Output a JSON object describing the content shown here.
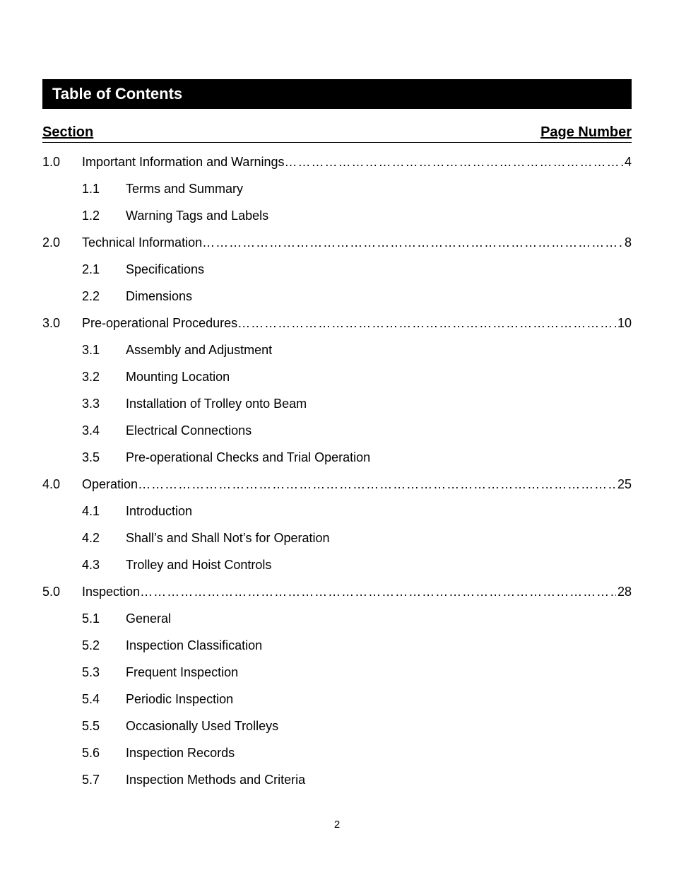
{
  "title": "Table of Contents",
  "header": {
    "left": "Section",
    "right": "Page Number"
  },
  "page_number_footer": "2",
  "colors": {
    "title_bg": "#000000",
    "title_fg": "#ffffff",
    "text": "#000000",
    "page_bg": "#ffffff"
  },
  "typography": {
    "title_font": "Arial Black",
    "body_font": "Arial",
    "title_size_pt": 17,
    "header_size_pt": 15,
    "body_size_pt": 13
  },
  "toc": [
    {
      "num": "1.0",
      "title": "Important Information and Warnings",
      "page": "4",
      "children": [
        {
          "num": "1.1",
          "title": "Terms and Summary"
        },
        {
          "num": "1.2",
          "title": "Warning Tags and Labels"
        }
      ]
    },
    {
      "num": "2.0",
      "title": "Technical Information ",
      "page": "8",
      "children": [
        {
          "num": "2.1",
          "title": "Specifications"
        },
        {
          "num": "2.2",
          "title": "Dimensions"
        }
      ]
    },
    {
      "num": "3.0",
      "title": "Pre-operational Procedures",
      "page": "10",
      "children": [
        {
          "num": "3.1",
          "title": "Assembly and Adjustment"
        },
        {
          "num": "3.2",
          "title": "Mounting Location"
        },
        {
          "num": "3.3",
          "title": "Installation of Trolley onto Beam"
        },
        {
          "num": "3.4",
          "title": "Electrical Connections"
        },
        {
          "num": "3.5",
          "title": "Pre-operational Checks and Trial Operation"
        }
      ]
    },
    {
      "num": "4.0",
      "title": "Operation",
      "page": "25",
      "children": [
        {
          "num": "4.1",
          "title": "Introduction"
        },
        {
          "num": "4.2",
          "title": "Shall’s and Shall Not’s for Operation"
        },
        {
          "num": "4.3",
          "title": "Trolley and Hoist Controls"
        }
      ]
    },
    {
      "num": "5.0",
      "title": "Inspection",
      "page": "28",
      "children": [
        {
          "num": "5.1",
          "title": "General"
        },
        {
          "num": "5.2",
          "title": "Inspection Classification"
        },
        {
          "num": "5.3",
          "title": "Frequent Inspection"
        },
        {
          "num": "5.4",
          "title": "Periodic Inspection"
        },
        {
          "num": "5.5",
          "title": "Occasionally Used Trolleys"
        },
        {
          "num": "5.6",
          "title": "Inspection Records"
        },
        {
          "num": "5.7",
          "title": "Inspection Methods and Criteria"
        }
      ]
    }
  ]
}
